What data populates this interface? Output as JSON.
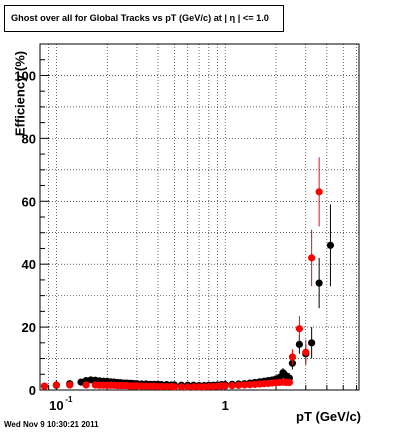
{
  "title": "Ghost over all for Global Tracks vs pT (GeV/c) at |  η | <= 1.0",
  "footer": "Wed Nov  9 10:30:21 2011",
  "chart_data": {
    "type": "scatter",
    "title": "Ghost over all for Global Tracks vs pT (GeV/c) at |  η | <= 1.0",
    "xlabel": "pT (GeV/c)",
    "ylabel": "Efficiency (%)",
    "xscale": "log",
    "xlim": [
      0.08,
      6.2
    ],
    "ylim": [
      0,
      110
    ],
    "grid": true,
    "y_ticks": [
      0,
      20,
      40,
      60,
      80,
      100
    ],
    "x_tick_labels": [
      {
        "value": 0.1,
        "label": "10",
        "sup": "-1"
      },
      {
        "value": 1,
        "label": "1",
        "sup": ""
      }
    ],
    "series": [
      {
        "color": "#000000",
        "points": [
          [
            0.085,
            1.2,
            0.5
          ],
          [
            0.1,
            1.5,
            0.5
          ],
          [
            0.12,
            2.0,
            0.5
          ],
          [
            0.14,
            2.5,
            0.5
          ],
          [
            0.15,
            3.0,
            0.5
          ],
          [
            0.16,
            3.2,
            0.5
          ],
          [
            0.17,
            3.1,
            0.5
          ],
          [
            0.18,
            2.9,
            0.5
          ],
          [
            0.19,
            2.8,
            0.5
          ],
          [
            0.2,
            2.7,
            0.5
          ],
          [
            0.21,
            2.6,
            0.5
          ],
          [
            0.22,
            2.5,
            0.5
          ],
          [
            0.23,
            2.4,
            0.5
          ],
          [
            0.24,
            2.3,
            0.5
          ],
          [
            0.25,
            2.2,
            0.5
          ],
          [
            0.26,
            2.2,
            0.5
          ],
          [
            0.27,
            2.1,
            0.5
          ],
          [
            0.28,
            2.1,
            0.5
          ],
          [
            0.29,
            2.0,
            0.5
          ],
          [
            0.3,
            2.0,
            0.5
          ],
          [
            0.32,
            1.9,
            0.5
          ],
          [
            0.34,
            1.9,
            0.5
          ],
          [
            0.36,
            1.8,
            0.5
          ],
          [
            0.38,
            1.8,
            0.5
          ],
          [
            0.4,
            1.8,
            0.5
          ],
          [
            0.42,
            1.7,
            0.5
          ],
          [
            0.45,
            1.7,
            0.5
          ],
          [
            0.48,
            1.6,
            0.5
          ],
          [
            0.5,
            1.6,
            0.5
          ],
          [
            0.55,
            1.5,
            0.5
          ],
          [
            0.6,
            1.5,
            0.5
          ],
          [
            0.65,
            1.5,
            0.5
          ],
          [
            0.7,
            1.4,
            0.5
          ],
          [
            0.75,
            1.4,
            0.5
          ],
          [
            0.8,
            1.5,
            0.5
          ],
          [
            0.85,
            1.5,
            0.5
          ],
          [
            0.9,
            1.6,
            0.5
          ],
          [
            0.95,
            1.7,
            0.5
          ],
          [
            1.0,
            1.7,
            0.5
          ],
          [
            1.1,
            1.8,
            0.5
          ],
          [
            1.2,
            1.9,
            0.5
          ],
          [
            1.3,
            2.0,
            0.6
          ],
          [
            1.4,
            2.2,
            0.6
          ],
          [
            1.5,
            2.4,
            0.7
          ],
          [
            1.6,
            2.6,
            0.7
          ],
          [
            1.7,
            2.8,
            0.8
          ],
          [
            1.8,
            3.0,
            0.9
          ],
          [
            1.9,
            3.2,
            1.0
          ],
          [
            2.0,
            3.5,
            1.0
          ],
          [
            2.1,
            4.0,
            1.2
          ],
          [
            2.2,
            5.5,
            1.5
          ],
          [
            2.3,
            4.5,
            1.5
          ],
          [
            2.4,
            3.8,
            1.5
          ],
          [
            2.5,
            8.5,
            2.0
          ],
          [
            2.75,
            14.5,
            3.0
          ],
          [
            3.0,
            11.5,
            3.0
          ],
          [
            3.25,
            15,
            5.0
          ],
          [
            3.6,
            34,
            8.0
          ],
          [
            4.2,
            46,
            13.0
          ]
        ]
      },
      {
        "color": "#ff0000",
        "points": [
          [
            0.085,
            1.2,
            0.5
          ],
          [
            0.1,
            1.6,
            0.5
          ],
          [
            0.12,
            1.6,
            0.5
          ],
          [
            0.15,
            1.6,
            0.5
          ],
          [
            0.17,
            1.6,
            0.5
          ],
          [
            0.18,
            1.5,
            0.5
          ],
          [
            0.19,
            1.5,
            0.5
          ],
          [
            0.2,
            1.5,
            0.5
          ],
          [
            0.21,
            1.5,
            0.5
          ],
          [
            0.22,
            1.5,
            0.5
          ],
          [
            0.23,
            1.4,
            0.5
          ],
          [
            0.24,
            1.4,
            0.5
          ],
          [
            0.25,
            1.4,
            0.5
          ],
          [
            0.26,
            1.4,
            0.5
          ],
          [
            0.27,
            1.3,
            0.5
          ],
          [
            0.28,
            1.3,
            0.5
          ],
          [
            0.29,
            1.3,
            0.5
          ],
          [
            0.3,
            1.3,
            0.5
          ],
          [
            0.32,
            1.2,
            0.5
          ],
          [
            0.34,
            1.2,
            0.5
          ],
          [
            0.36,
            1.2,
            0.5
          ],
          [
            0.38,
            1.2,
            0.5
          ],
          [
            0.4,
            1.1,
            0.5
          ],
          [
            0.42,
            1.1,
            0.5
          ],
          [
            0.45,
            1.1,
            0.5
          ],
          [
            0.48,
            1.1,
            0.5
          ],
          [
            0.5,
            1.0,
            0.5
          ],
          [
            0.55,
            1.0,
            0.5
          ],
          [
            0.6,
            1.0,
            0.5
          ],
          [
            0.65,
            1.0,
            0.5
          ],
          [
            0.7,
            1.0,
            0.5
          ],
          [
            0.75,
            1.0,
            0.5
          ],
          [
            0.8,
            1.1,
            0.5
          ],
          [
            0.85,
            1.1,
            0.5
          ],
          [
            0.9,
            1.2,
            0.5
          ],
          [
            0.95,
            1.3,
            0.5
          ],
          [
            1.0,
            1.3,
            0.5
          ],
          [
            1.1,
            1.4,
            0.5
          ],
          [
            1.2,
            1.5,
            0.5
          ],
          [
            1.3,
            1.6,
            0.6
          ],
          [
            1.4,
            1.7,
            0.6
          ],
          [
            1.5,
            1.8,
            0.7
          ],
          [
            1.6,
            1.9,
            0.7
          ],
          [
            1.7,
            2.0,
            0.8
          ],
          [
            1.8,
            2.1,
            0.9
          ],
          [
            1.9,
            2.2,
            1.0
          ],
          [
            2.0,
            2.3,
            1.0
          ],
          [
            2.1,
            2.4,
            1.0
          ],
          [
            2.2,
            2.5,
            1.0
          ],
          [
            2.3,
            2.4,
            1.2
          ],
          [
            2.4,
            2.4,
            1.2
          ],
          [
            2.5,
            10.5,
            2.5
          ],
          [
            2.75,
            19.5,
            4.0
          ],
          [
            3.0,
            12.0,
            4.0
          ],
          [
            3.25,
            42,
            9.0
          ],
          [
            3.6,
            63,
            11.0
          ]
        ]
      }
    ]
  }
}
